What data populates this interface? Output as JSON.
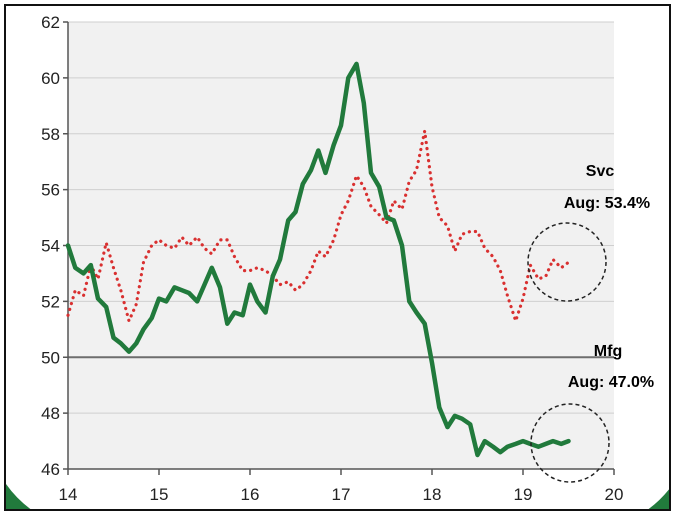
{
  "chart_data": {
    "type": "line",
    "title": "",
    "xlabel": "",
    "ylabel": "",
    "xlim": [
      14,
      20
    ],
    "ylim": [
      46,
      62
    ],
    "x_ticks": [
      "14",
      "15",
      "16",
      "17",
      "18",
      "19",
      "20"
    ],
    "y_ticks": [
      "46",
      "48",
      "50",
      "52",
      "54",
      "56",
      "58",
      "60",
      "62"
    ],
    "grid": "horizontal",
    "reference_line": 50,
    "colors": {
      "svc": "#d93030",
      "mfg": "#217a3c",
      "svc_label": "#c0282d",
      "mfg_label": "#2e7d3f",
      "plot_bg": "#f1f1f1",
      "grid": "#cfcfcf"
    },
    "series": [
      {
        "key": "svc",
        "style": "dotted",
        "x": [
          14.0,
          14.08,
          14.17,
          14.25,
          14.33,
          14.42,
          14.5,
          14.58,
          14.67,
          14.75,
          14.83,
          14.92,
          15.0,
          15.08,
          15.17,
          15.25,
          15.33,
          15.42,
          15.5,
          15.58,
          15.67,
          15.75,
          15.83,
          15.92,
          16.0,
          16.08,
          16.17,
          16.25,
          16.33,
          16.42,
          16.5,
          16.58,
          16.67,
          16.75,
          16.83,
          16.92,
          17.0,
          17.08,
          17.17,
          17.25,
          17.33,
          17.42,
          17.5,
          17.58,
          17.67,
          17.75,
          17.83,
          17.92,
          18.0,
          18.08,
          18.17,
          18.25,
          18.33,
          18.42,
          18.5,
          18.58,
          18.67,
          18.75,
          18.83,
          18.92,
          19.0,
          19.08,
          19.17,
          19.25,
          19.33,
          19.42,
          19.5
        ],
        "y": [
          51.5,
          52.4,
          52.2,
          53.3,
          52.8,
          54.1,
          53.2,
          52.4,
          51.3,
          51.9,
          53.4,
          54.0,
          54.2,
          54.0,
          53.9,
          54.3,
          54.0,
          54.3,
          53.9,
          53.7,
          54.2,
          54.2,
          53.6,
          53.1,
          53.1,
          53.2,
          53.1,
          52.9,
          52.6,
          52.7,
          52.4,
          52.6,
          53.1,
          53.8,
          53.6,
          54.2,
          55.1,
          55.6,
          56.5,
          56.1,
          55.4,
          55.1,
          54.8,
          55.6,
          55.3,
          56.3,
          56.7,
          58.1,
          56.1,
          55.0,
          54.7,
          53.8,
          54.4,
          54.5,
          54.5,
          53.9,
          53.6,
          53.1,
          52.2,
          51.3,
          52.1,
          53.3,
          52.8,
          52.9,
          53.5,
          53.2,
          53.4
        ]
      },
      {
        "key": "mfg",
        "style": "solid",
        "x": [
          14.0,
          14.08,
          14.17,
          14.25,
          14.33,
          14.42,
          14.5,
          14.58,
          14.67,
          14.75,
          14.83,
          14.92,
          15.0,
          15.08,
          15.17,
          15.25,
          15.33,
          15.42,
          15.5,
          15.58,
          15.67,
          15.75,
          15.83,
          15.92,
          16.0,
          16.08,
          16.17,
          16.25,
          16.33,
          16.42,
          16.5,
          16.58,
          16.67,
          16.75,
          16.83,
          16.92,
          17.0,
          17.08,
          17.17,
          17.25,
          17.33,
          17.42,
          17.5,
          17.58,
          17.67,
          17.75,
          17.83,
          17.92,
          18.0,
          18.08,
          18.17,
          18.25,
          18.33,
          18.42,
          18.5,
          18.58,
          18.67,
          18.75,
          18.83,
          18.92,
          19.0,
          19.08,
          19.17,
          19.25,
          19.33,
          19.42,
          19.5
        ],
        "y": [
          54.0,
          53.2,
          53.0,
          53.3,
          52.1,
          51.8,
          50.7,
          50.5,
          50.2,
          50.5,
          51.0,
          51.4,
          52.1,
          52.0,
          52.5,
          52.4,
          52.3,
          52.0,
          52.6,
          53.2,
          52.5,
          51.2,
          51.6,
          51.5,
          52.6,
          52.0,
          51.6,
          52.9,
          53.5,
          54.9,
          55.2,
          56.2,
          56.7,
          57.4,
          56.6,
          57.6,
          58.3,
          60.0,
          60.5,
          59.1,
          56.6,
          56.1,
          55.0,
          54.9,
          54.0,
          52.0,
          51.6,
          51.2,
          49.8,
          48.2,
          47.5,
          47.9,
          47.8,
          47.6,
          46.5,
          47.0,
          46.8,
          46.6,
          46.8,
          46.9,
          47.0,
          46.9,
          46.8,
          46.9,
          47.0,
          46.9,
          47.0
        ]
      }
    ],
    "annotations": {
      "svc_name": "Svc",
      "svc_value": "Aug: 53.4%",
      "mfg_name": "Mfg",
      "mfg_value": "Aug: 47.0%"
    }
  }
}
